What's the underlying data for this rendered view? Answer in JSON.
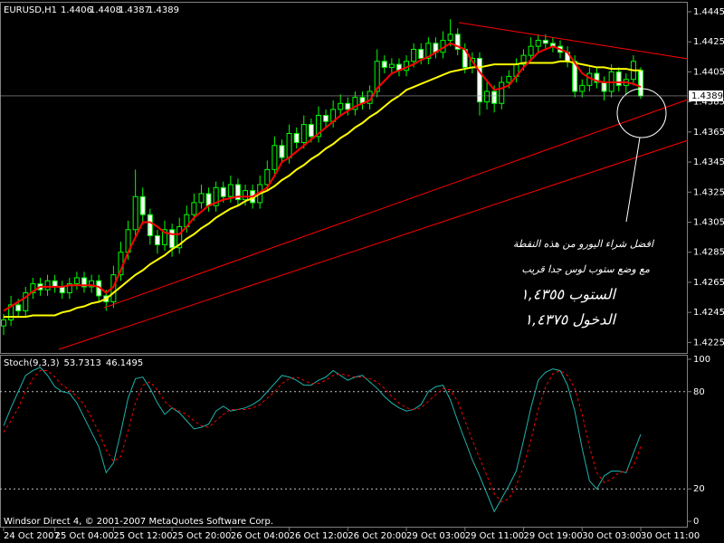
{
  "chart_data": [
    {
      "type": "candlestick",
      "symbol": "EURUSD,H1",
      "categories": [
        "24 Oct 2007",
        null,
        null,
        null,
        null,
        null,
        null,
        "25 Oct 04:00",
        null,
        null,
        null,
        null,
        null,
        null,
        null,
        "25 Oct 12:00",
        null,
        null,
        null,
        null,
        null,
        null,
        null,
        "25 Oct 20:00",
        null,
        null,
        null,
        null,
        null,
        null,
        null,
        "26 Oct 04:00",
        null,
        null,
        null,
        null,
        null,
        null,
        null,
        "26 Oct 12:00",
        null,
        null,
        null,
        null,
        null,
        null,
        null,
        "26 Oct 20:00",
        null,
        null,
        null,
        null,
        null,
        null,
        null,
        "29 Oct 03:00",
        null,
        null,
        null,
        null,
        null,
        null,
        null,
        "29 Oct 11:00",
        null,
        null,
        null,
        null,
        null,
        null,
        null,
        "29 Oct 19:00",
        null,
        null,
        null,
        null,
        null,
        null,
        null,
        "30 Oct 03:00",
        null,
        null,
        null,
        null,
        null,
        null,
        null,
        "30 Oct 11:00"
      ],
      "open": [
        1.4236,
        1.424,
        1.425,
        1.4246,
        1.4258,
        1.4264,
        1.426,
        1.4266,
        1.4262,
        1.4258,
        1.4264,
        1.4268,
        1.4262,
        1.4266,
        1.4256,
        1.4252,
        1.427,
        1.4285,
        1.43,
        1.4322,
        1.431,
        1.4296,
        1.429,
        1.43,
        1.4288,
        1.4302,
        1.431,
        1.4318,
        1.4324,
        1.4316,
        1.4328,
        1.4322,
        1.433,
        1.432,
        1.4326,
        1.4318,
        1.433,
        1.434,
        1.4356,
        1.4348,
        1.4364,
        1.4358,
        1.437,
        1.4362,
        1.4376,
        1.4372,
        1.438,
        1.4384,
        1.438,
        1.4388,
        1.4384,
        1.4392,
        1.4412,
        1.4408,
        1.441,
        1.4406,
        1.4412,
        1.442,
        1.4414,
        1.4424,
        1.4418,
        1.4426,
        1.443,
        1.442,
        1.4408,
        1.4414,
        1.4385,
        1.4392,
        1.4384,
        1.4398,
        1.4402,
        1.441,
        1.4416,
        1.4422,
        1.4426,
        1.4424,
        1.4422,
        1.4418,
        1.4412,
        1.4392,
        1.4396,
        1.4404,
        1.4398,
        1.4392,
        1.4405,
        1.4396,
        1.44,
        1.4406
      ],
      "high": [
        1.4244,
        1.4256,
        1.4254,
        1.4262,
        1.4268,
        1.4268,
        1.427,
        1.427,
        1.4266,
        1.4268,
        1.4272,
        1.4272,
        1.427,
        1.427,
        1.426,
        1.4276,
        1.4292,
        1.4306,
        1.434,
        1.4328,
        1.4314,
        1.43,
        1.4306,
        1.4304,
        1.4308,
        1.4316,
        1.4324,
        1.433,
        1.4328,
        1.4332,
        1.4332,
        1.4336,
        1.4334,
        1.433,
        1.433,
        1.4336,
        1.4346,
        1.4362,
        1.436,
        1.437,
        1.4368,
        1.4376,
        1.4374,
        1.4382,
        1.438,
        1.4386,
        1.439,
        1.4388,
        1.4392,
        1.4392,
        1.4396,
        1.442,
        1.4416,
        1.4414,
        1.4414,
        1.4416,
        1.4424,
        1.4424,
        1.4428,
        1.4428,
        1.4432,
        1.444,
        1.4434,
        1.4424,
        1.4418,
        1.4418,
        1.4398,
        1.4396,
        1.4402,
        1.4406,
        1.4414,
        1.442,
        1.4428,
        1.443,
        1.443,
        1.4428,
        1.4426,
        1.4422,
        1.4416,
        1.44,
        1.4408,
        1.4408,
        1.4402,
        1.441,
        1.4408,
        1.4404,
        1.4416,
        1.4408
      ],
      "low": [
        1.423,
        1.4236,
        1.4242,
        1.4242,
        1.4254,
        1.4256,
        1.4256,
        1.4258,
        1.4254,
        1.4254,
        1.426,
        1.4258,
        1.4258,
        1.4252,
        1.4246,
        1.4248,
        1.4266,
        1.428,
        1.4296,
        1.4304,
        1.429,
        1.4284,
        1.4286,
        1.4282,
        1.4284,
        1.4298,
        1.4306,
        1.4314,
        1.4312,
        1.4312,
        1.4318,
        1.4318,
        1.4316,
        1.4316,
        1.4314,
        1.4314,
        1.4326,
        1.4336,
        1.4344,
        1.4344,
        1.4354,
        1.4354,
        1.4358,
        1.4358,
        1.4368,
        1.4368,
        1.4376,
        1.4376,
        1.4376,
        1.438,
        1.438,
        1.4388,
        1.4404,
        1.4404,
        1.4402,
        1.4402,
        1.4408,
        1.441,
        1.441,
        1.4414,
        1.4414,
        1.4422,
        1.4416,
        1.4404,
        1.4404,
        1.4376,
        1.438,
        1.4378,
        1.438,
        1.4394,
        1.4398,
        1.4406,
        1.4412,
        1.4418,
        1.442,
        1.4418,
        1.4414,
        1.4408,
        1.4388,
        1.4388,
        1.4392,
        1.4394,
        1.4386,
        1.4388,
        1.4392,
        1.439,
        1.4396,
        1.4387
      ],
      "close": [
        1.424,
        1.425,
        1.4246,
        1.4258,
        1.4264,
        1.426,
        1.4266,
        1.4262,
        1.4258,
        1.4264,
        1.4268,
        1.4262,
        1.4266,
        1.4256,
        1.4252,
        1.427,
        1.4285,
        1.43,
        1.4322,
        1.431,
        1.4296,
        1.429,
        1.43,
        1.4288,
        1.4302,
        1.431,
        1.4318,
        1.4324,
        1.4316,
        1.4328,
        1.4322,
        1.433,
        1.432,
        1.4326,
        1.4318,
        1.433,
        1.434,
        1.4356,
        1.4348,
        1.4364,
        1.4358,
        1.437,
        1.4362,
        1.4376,
        1.4372,
        1.438,
        1.4384,
        1.438,
        1.4388,
        1.4384,
        1.4392,
        1.4412,
        1.4408,
        1.441,
        1.4406,
        1.4412,
        1.442,
        1.4414,
        1.4424,
        1.4418,
        1.4426,
        1.443,
        1.442,
        1.4408,
        1.4414,
        1.4385,
        1.4392,
        1.4384,
        1.4398,
        1.4402,
        1.441,
        1.4416,
        1.4422,
        1.4426,
        1.4424,
        1.4422,
        1.4418,
        1.4412,
        1.4392,
        1.4396,
        1.4404,
        1.4398,
        1.4392,
        1.4405,
        1.4396,
        1.44,
        1.4412,
        1.4389
      ],
      "candle_outline": "#00ff00",
      "bull_fill": "#000000",
      "bear_fill": "#ffffff",
      "overlays": [
        {
          "color": "#ffff00",
          "values": [
            1.4242,
            1.4242,
            1.4242,
            1.4242,
            1.4243,
            1.4243,
            1.4243,
            1.4243,
            1.4245,
            1.4246,
            1.4248,
            1.4249,
            1.4251,
            1.4252,
            1.4254,
            1.4258,
            1.4262,
            1.4266,
            1.427,
            1.4273,
            1.4277,
            1.428,
            1.4283,
            1.4287,
            1.429,
            1.4294,
            1.4297,
            1.4301,
            1.4304,
            1.4308,
            1.4311,
            1.4314,
            1.4316,
            1.4319,
            1.4321,
            1.4324,
            1.4326,
            1.4329,
            1.4333,
            1.4336,
            1.434,
            1.4343,
            1.4347,
            1.435,
            1.4354,
            1.4357,
            1.4361,
            1.4364,
            1.4368,
            1.4371,
            1.4375,
            1.4378,
            1.4382,
            1.4386,
            1.4389,
            1.4393,
            1.4395,
            1.4397,
            1.4399,
            1.4401,
            1.4403,
            1.4405,
            1.4406,
            1.4407,
            1.4408,
            1.4408,
            1.4409,
            1.441,
            1.441,
            1.441,
            1.441,
            1.4411,
            1.4411,
            1.4411,
            1.4411,
            1.4411,
            1.4412,
            1.4412,
            1.4411,
            1.441,
            1.4409,
            1.4408,
            1.4408,
            1.4407,
            1.4407,
            1.4407,
            1.4406,
            1.4406
          ]
        },
        {
          "color": "#ff0000",
          "values": [
            1.4246,
            1.4249,
            1.4252,
            1.4255,
            1.4259,
            1.4262,
            1.4262,
            1.4262,
            1.4262,
            1.4263,
            1.4263,
            1.4263,
            1.4263,
            1.4262,
            1.4258,
            1.4262,
            1.4273,
            1.4285,
            1.4295,
            1.4305,
            1.4305,
            1.4302,
            1.4298,
            1.4297,
            1.4297,
            1.4302,
            1.4308,
            1.4312,
            1.4316,
            1.4318,
            1.432,
            1.4321,
            1.4322,
            1.4322,
            1.4322,
            1.4325,
            1.4328,
            1.4336,
            1.4345,
            1.4348,
            1.4352,
            1.4356,
            1.436,
            1.4364,
            1.4368,
            1.4372,
            1.4376,
            1.4379,
            1.4382,
            1.4384,
            1.4386,
            1.4394,
            1.4399,
            1.4404,
            1.4406,
            1.4408,
            1.441,
            1.4413,
            1.4415,
            1.4418,
            1.4421,
            1.4424,
            1.4422,
            1.442,
            1.4412,
            1.4405,
            1.4399,
            1.4393,
            1.4394,
            1.4396,
            1.4402,
            1.4408,
            1.4413,
            1.4418,
            1.442,
            1.4422,
            1.442,
            1.4418,
            1.4411,
            1.4404,
            1.4401,
            1.4399,
            1.4398,
            1.4398,
            1.4398,
            1.4398,
            1.4397,
            1.4395
          ]
        }
      ],
      "ylim": [
        1.4218,
        1.4451
      ],
      "yticks": [
        1.4445,
        1.4425,
        1.4405,
        1.4385,
        1.4365,
        1.4345,
        1.4325,
        1.4305,
        1.4285,
        1.4265,
        1.4245,
        1.4225
      ],
      "annotations": [
        "افضل شراء اليورو من هذه النقطة",
        "مع وضع ستوب لوس جدا قريب",
        "الستوب ١,٤٣٥٥",
        "الدخول ١,٤٣٧٥"
      ]
    },
    {
      "type": "line",
      "title": "Stoch(9,3,3)",
      "series": [
        {
          "color": "#20b2aa",
          "dash": false,
          "values": [
            59,
            70,
            80,
            90,
            93,
            95,
            90,
            83,
            80,
            79,
            73,
            64,
            55,
            46,
            30,
            36,
            55,
            76,
            88,
            89,
            82,
            73,
            66,
            70,
            67,
            62,
            57,
            58,
            60,
            68,
            71,
            68,
            69,
            70,
            72,
            75,
            80,
            85,
            90,
            89,
            87,
            84,
            84,
            87,
            89,
            93,
            90,
            87,
            89,
            90,
            86,
            82,
            77,
            73,
            70,
            68,
            69,
            72,
            80,
            83,
            84,
            75,
            62,
            50,
            38,
            28,
            17,
            6,
            14,
            22,
            31,
            50,
            70,
            87,
            92,
            94,
            93,
            84,
            68,
            45,
            25,
            20,
            28,
            31,
            31,
            30,
            42,
            53.7313
          ]
        },
        {
          "color": "#ff0000",
          "dash": true,
          "values": [
            55,
            62,
            70,
            80,
            88,
            93,
            93,
            89,
            84,
            81,
            77,
            72,
            64,
            55,
            44,
            37,
            40,
            56,
            73,
            84,
            86,
            81,
            74,
            70,
            68,
            66,
            62,
            59,
            58,
            62,
            66,
            69,
            69,
            69,
            70,
            72,
            76,
            80,
            85,
            88,
            89,
            87,
            85,
            85,
            87,
            90,
            91,
            90,
            89,
            89,
            88,
            86,
            82,
            77,
            73,
            70,
            69,
            70,
            74,
            78,
            82,
            81,
            74,
            62,
            50,
            39,
            28,
            17,
            12,
            14,
            22,
            34,
            50,
            69,
            83,
            91,
            93,
            90,
            82,
            66,
            46,
            30,
            24,
            26,
            30,
            31,
            34,
            46.1495
          ]
        }
      ],
      "ylim": [
        -2.2,
        102.2
      ],
      "yticks": [
        100,
        80,
        20,
        0
      ],
      "levels": [
        80,
        20
      ],
      "footer": "Windsor Direct 4, © 2001-2007 MetaQuotes Software Corp."
    }
  ]
}
